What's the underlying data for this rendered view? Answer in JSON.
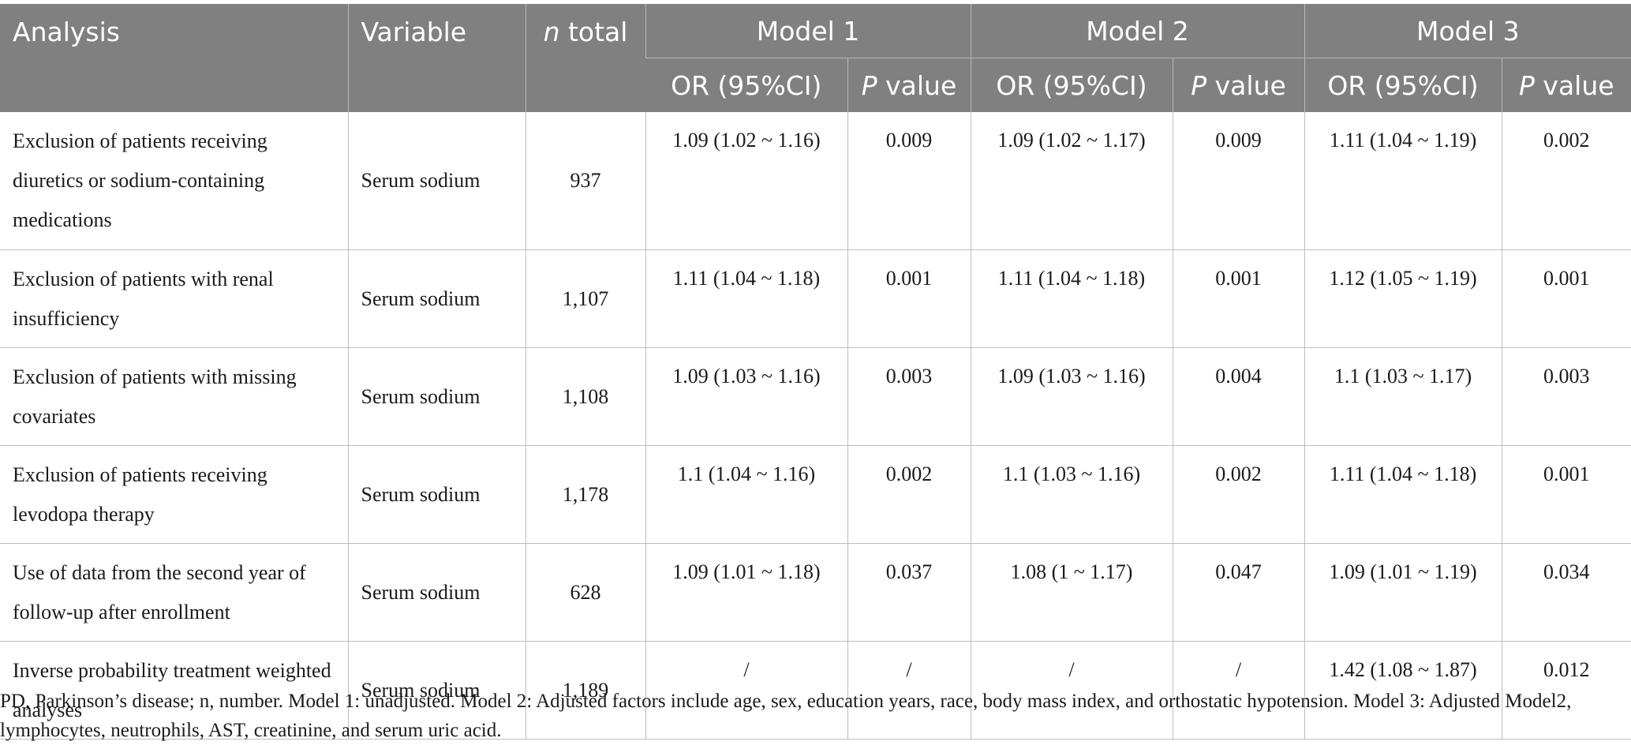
{
  "table": {
    "headers": {
      "analysis": "Analysis",
      "variable": "Variable",
      "n_total_italic": "n",
      "n_total_rest": " total",
      "models": [
        "Model 1",
        "Model 2",
        "Model 3"
      ],
      "or_label": "OR (95%CI)",
      "p_italic": "P",
      "p_rest": " value"
    },
    "rows": [
      {
        "analysis": "Exclusion of patients receiving diuretics or sodium-containing medications",
        "variable": "Serum sodium",
        "n_total": "937",
        "m1_or": "1.09 (1.02 ~ 1.16)",
        "m1_p": "0.009",
        "m2_or": "1.09 (1.02 ~ 1.17)",
        "m2_p": "0.009",
        "m3_or": "1.11 (1.04 ~ 1.19)",
        "m3_p": "0.002"
      },
      {
        "analysis": "Exclusion of patients with renal insufficiency",
        "variable": "Serum sodium",
        "n_total": "1,107",
        "m1_or": "1.11 (1.04 ~ 1.18)",
        "m1_p": "0.001",
        "m2_or": "1.11 (1.04 ~ 1.18)",
        "m2_p": "0.001",
        "m3_or": "1.12 (1.05 ~ 1.19)",
        "m3_p": "0.001"
      },
      {
        "analysis": "Exclusion of patients with missing covariates",
        "variable": "Serum sodium",
        "n_total": "1,108",
        "m1_or": "1.09 (1.03 ~ 1.16)",
        "m1_p": "0.003",
        "m2_or": "1.09 (1.03 ~ 1.16)",
        "m2_p": "0.004",
        "m3_or": "1.1 (1.03 ~ 1.17)",
        "m3_p": "0.003"
      },
      {
        "analysis": "Exclusion of patients receiving levodopa therapy",
        "variable": "Serum sodium",
        "n_total": "1,178",
        "m1_or": "1.1 (1.04 ~ 1.16)",
        "m1_p": "0.002",
        "m2_or": "1.1 (1.03 ~ 1.16)",
        "m2_p": "0.002",
        "m3_or": "1.11 (1.04 ~ 1.18)",
        "m3_p": "0.001"
      },
      {
        "analysis": "Use of data from the second year of follow-up after enrollment",
        "variable": "Serum sodium",
        "n_total": "628",
        "m1_or": "1.09 (1.01 ~ 1.18)",
        "m1_p": "0.037",
        "m2_or": "1.08 (1 ~ 1.17)",
        "m2_p": "0.047",
        "m3_or": "1.09 (1.01 ~ 1.19)",
        "m3_p": "0.034"
      },
      {
        "analysis": "Inverse probability treatment weighted analyses",
        "variable": "Serum sodium",
        "n_total": "1,189",
        "m1_or": "/",
        "m1_p": "/",
        "m2_or": "/",
        "m2_p": "/",
        "m3_or": "1.42 (1.08 ~ 1.87)",
        "m3_p": "0.012"
      }
    ]
  },
  "footnote": "PD, Parkinson’s disease; n, number. Model 1: unadjusted. Model 2: Adjusted factors include age, sex, education years, race, body mass index, and orthostatic hypotension. Model 3: Adjusted Model2, lymphocytes, neutrophils, AST, creatinine, and serum uric acid."
}
